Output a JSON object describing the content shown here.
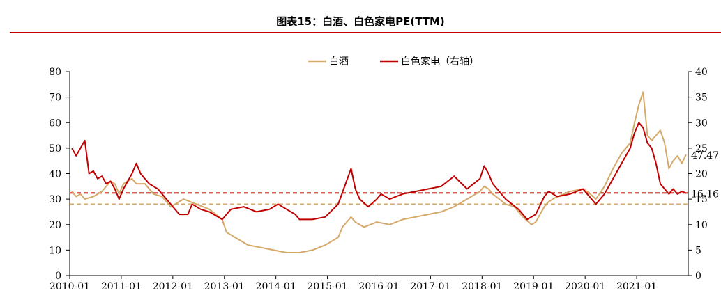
{
  "title": "图表15：白酒、白色家电PE(TTM)",
  "chart_data": {
    "type": "line",
    "x_ticks": [
      "2010-01",
      "2011-01",
      "2012-01",
      "2013-01",
      "2014-01",
      "2015-01",
      "2016-01",
      "2017-01",
      "2018-01",
      "2019-01",
      "2020-01",
      "2021-01"
    ],
    "x_range": [
      "2010-01",
      "2021-12"
    ],
    "y_left": {
      "lim": [
        0,
        80
      ],
      "ticks": [
        0,
        10,
        20,
        30,
        40,
        50,
        60,
        70,
        80
      ]
    },
    "y_right": {
      "lim": [
        0,
        40
      ],
      "ticks": [
        0,
        5,
        10,
        15,
        20,
        25,
        30,
        35,
        40
      ]
    },
    "legend_position": "top-center",
    "series": [
      {
        "name": "白酒",
        "axis": "left",
        "color": "#d4a96a",
        "points": [
          [
            "2010-01",
            33
          ],
          [
            "2010-02",
            31
          ],
          [
            "2010-03",
            32
          ],
          [
            "2010-04",
            30
          ],
          [
            "2010-06",
            31
          ],
          [
            "2010-08",
            33
          ],
          [
            "2010-10",
            37
          ],
          [
            "2010-11",
            36
          ],
          [
            "2010-12",
            32
          ],
          [
            "2011-01",
            36
          ],
          [
            "2011-02",
            37
          ],
          [
            "2011-03",
            38
          ],
          [
            "2011-04",
            36
          ],
          [
            "2011-06",
            36
          ],
          [
            "2011-08",
            32
          ],
          [
            "2011-10",
            31
          ],
          [
            "2011-12",
            27
          ],
          [
            "2012-03",
            30
          ],
          [
            "2012-06",
            28
          ],
          [
            "2012-09",
            26
          ],
          [
            "2012-12",
            22
          ],
          [
            "2013-01",
            17
          ],
          [
            "2013-03",
            15
          ],
          [
            "2013-06",
            12
          ],
          [
            "2013-09",
            11
          ],
          [
            "2013-12",
            10
          ],
          [
            "2014-03",
            9
          ],
          [
            "2014-06",
            9
          ],
          [
            "2014-09",
            10
          ],
          [
            "2014-12",
            12
          ],
          [
            "2015-03",
            15
          ],
          [
            "2015-04",
            19
          ],
          [
            "2015-06",
            23
          ],
          [
            "2015-07",
            21
          ],
          [
            "2015-09",
            19
          ],
          [
            "2015-12",
            21
          ],
          [
            "2016-03",
            20
          ],
          [
            "2016-06",
            22
          ],
          [
            "2016-09",
            23
          ],
          [
            "2016-12",
            24
          ],
          [
            "2017-03",
            25
          ],
          [
            "2017-06",
            27
          ],
          [
            "2017-09",
            30
          ],
          [
            "2017-12",
            33
          ],
          [
            "2018-01",
            35
          ],
          [
            "2018-02",
            34
          ],
          [
            "2018-03",
            32
          ],
          [
            "2018-06",
            28
          ],
          [
            "2018-08",
            27
          ],
          [
            "2018-10",
            23
          ],
          [
            "2018-12",
            20
          ],
          [
            "2019-01",
            21
          ],
          [
            "2019-03",
            27
          ],
          [
            "2019-04",
            29
          ],
          [
            "2019-06",
            31
          ],
          [
            "2019-09",
            33
          ],
          [
            "2019-12",
            34
          ],
          [
            "2020-01",
            33
          ],
          [
            "2020-03",
            30
          ],
          [
            "2020-05",
            35
          ],
          [
            "2020-07",
            42
          ],
          [
            "2020-09",
            48
          ],
          [
            "2020-11",
            52
          ],
          [
            "2020-12",
            60
          ],
          [
            "2021-01",
            67
          ],
          [
            "2021-02",
            72
          ],
          [
            "2021-03",
            55
          ],
          [
            "2021-04",
            53
          ],
          [
            "2021-06",
            57
          ],
          [
            "2021-07",
            52
          ],
          [
            "2021-08",
            42
          ],
          [
            "2021-09",
            45
          ],
          [
            "2021-10",
            47
          ],
          [
            "2021-11",
            44
          ],
          [
            "2021-12",
            47.47
          ]
        ]
      },
      {
        "name": "白色家电（右轴）",
        "axis": "right",
        "color": "#c00000",
        "points": [
          [
            "2010-01",
            25
          ],
          [
            "2010-02",
            23.5
          ],
          [
            "2010-03",
            25
          ],
          [
            "2010-04",
            26.5
          ],
          [
            "2010-05",
            20
          ],
          [
            "2010-06",
            20.5
          ],
          [
            "2010-07",
            19
          ],
          [
            "2010-08",
            19.5
          ],
          [
            "2010-09",
            18
          ],
          [
            "2010-10",
            18.5
          ],
          [
            "2010-11",
            17
          ],
          [
            "2010-12",
            15
          ],
          [
            "2011-01",
            17
          ],
          [
            "2011-03",
            20
          ],
          [
            "2011-04",
            22
          ],
          [
            "2011-05",
            20
          ],
          [
            "2011-07",
            18
          ],
          [
            "2011-09",
            17
          ],
          [
            "2011-12",
            14
          ],
          [
            "2012-02",
            12
          ],
          [
            "2012-04",
            12
          ],
          [
            "2012-05",
            14
          ],
          [
            "2012-07",
            13
          ],
          [
            "2012-09",
            12.5
          ],
          [
            "2012-12",
            11
          ],
          [
            "2013-02",
            13
          ],
          [
            "2013-05",
            13.5
          ],
          [
            "2013-08",
            12.5
          ],
          [
            "2013-11",
            13
          ],
          [
            "2014-01",
            14
          ],
          [
            "2014-03",
            13
          ],
          [
            "2014-05",
            12
          ],
          [
            "2014-06",
            11
          ],
          [
            "2014-09",
            11
          ],
          [
            "2014-12",
            11.5
          ],
          [
            "2015-03",
            14
          ],
          [
            "2015-06",
            21
          ],
          [
            "2015-07",
            17
          ],
          [
            "2015-08",
            15
          ],
          [
            "2015-10",
            13.5
          ],
          [
            "2015-12",
            15
          ],
          [
            "2016-01",
            16
          ],
          [
            "2016-03",
            15
          ],
          [
            "2016-06",
            16
          ],
          [
            "2016-09",
            16.5
          ],
          [
            "2016-12",
            17
          ],
          [
            "2017-03",
            17.5
          ],
          [
            "2017-06",
            19.5
          ],
          [
            "2017-09",
            17
          ],
          [
            "2017-12",
            19
          ],
          [
            "2018-01",
            21.5
          ],
          [
            "2018-02",
            20
          ],
          [
            "2018-03",
            18
          ],
          [
            "2018-06",
            15
          ],
          [
            "2018-09",
            13
          ],
          [
            "2018-11",
            11
          ],
          [
            "2019-01",
            12
          ],
          [
            "2019-03",
            15.5
          ],
          [
            "2019-04",
            16.5
          ],
          [
            "2019-06",
            15.5
          ],
          [
            "2019-09",
            16
          ],
          [
            "2019-12",
            17
          ],
          [
            "2020-01",
            16
          ],
          [
            "2020-03",
            14
          ],
          [
            "2020-05",
            16
          ],
          [
            "2020-07",
            19
          ],
          [
            "2020-09",
            22
          ],
          [
            "2020-11",
            25
          ],
          [
            "2020-12",
            28
          ],
          [
            "2021-01",
            30
          ],
          [
            "2021-02",
            29
          ],
          [
            "2021-03",
            26
          ],
          [
            "2021-04",
            25
          ],
          [
            "2021-05",
            22
          ],
          [
            "2021-06",
            18
          ],
          [
            "2021-07",
            17
          ],
          [
            "2021-08",
            16
          ],
          [
            "2021-09",
            17
          ],
          [
            "2021-10",
            16
          ],
          [
            "2021-11",
            16.5
          ],
          [
            "2021-12",
            16.16
          ]
        ]
      }
    ],
    "reference_lines": [
      {
        "series": "白酒",
        "value": 28,
        "axis": "left",
        "style": "dashed",
        "color": "#d4a96a"
      },
      {
        "series": "白色家电（右轴）",
        "value": 16.2,
        "axis": "right",
        "style": "dashed",
        "color": "#c00000"
      }
    ],
    "annotations": [
      {
        "text": "47.47",
        "axis": "left",
        "value": 47.47
      },
      {
        "text": "16.16",
        "axis": "right",
        "value": 16.16
      }
    ]
  }
}
